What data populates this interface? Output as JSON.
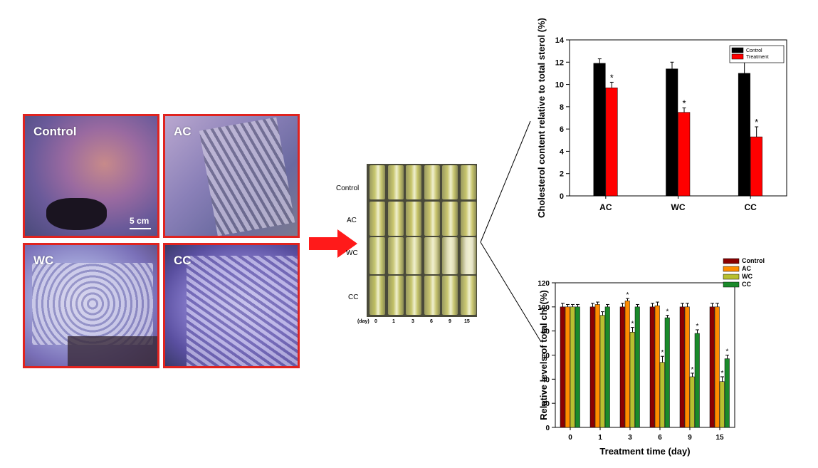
{
  "photos": [
    {
      "label": "Control",
      "scale": "5 cm"
    },
    {
      "label": "AC"
    },
    {
      "label": "WC"
    },
    {
      "label": "CC"
    }
  ],
  "tube_panel": {
    "rows": [
      "Control",
      "AC",
      "WC",
      "CC"
    ],
    "day_label": "(day)",
    "days": [
      "0",
      "1",
      "3",
      "6",
      "9",
      "15"
    ]
  },
  "colors": {
    "frame": "#e0231f",
    "arrow": "#ff1a1a",
    "control_black": "#000000",
    "treatment_red": "#ff0000",
    "chl_control": "#8b0000",
    "chl_ac": "#ff8c00",
    "chl_wc": "#b8c030",
    "chl_cc": "#1a8a2a"
  },
  "chart_data": [
    {
      "type": "bar",
      "ylabel": "Cholesterol content relative to total sterol (%)",
      "xlabel": "",
      "categories": [
        "AC",
        "WC",
        "CC"
      ],
      "ylim": [
        0,
        14
      ],
      "yticks": [
        "0",
        "2",
        "4",
        "6",
        "8",
        "10",
        "12",
        "14"
      ],
      "legend_placement": "top-right",
      "series": [
        {
          "name": "Control",
          "values": [
            11.9,
            11.4,
            11.0
          ],
          "errors": [
            0.4,
            0.6,
            1.1
          ],
          "sig": [
            "",
            "",
            ""
          ]
        },
        {
          "name": "Treatment",
          "values": [
            9.7,
            7.5,
            5.3
          ],
          "errors": [
            0.5,
            0.4,
            0.9
          ],
          "sig": [
            "*",
            "*",
            "*"
          ]
        }
      ]
    },
    {
      "type": "bar",
      "ylabel": "Relative levels of total chl (%)",
      "xlabel": "Treatment time (day)",
      "categories": [
        "0",
        "1",
        "3",
        "6",
        "9",
        "15"
      ],
      "ylim": [
        0,
        120
      ],
      "yticks": [
        "0",
        "20",
        "40",
        "60",
        "80",
        "100",
        "120"
      ],
      "legend_placement": "top-left",
      "series": [
        {
          "name": "Control",
          "values": [
            100,
            100,
            100,
            100,
            100,
            100
          ],
          "errors": [
            3,
            3,
            3,
            3,
            3,
            3
          ],
          "sig": [
            "",
            "",
            "",
            "",
            "",
            ""
          ]
        },
        {
          "name": "AC",
          "values": [
            100,
            102,
            105,
            101,
            100,
            100
          ],
          "errors": [
            2,
            2,
            2,
            3,
            3,
            3
          ],
          "sig": [
            "",
            "",
            "*",
            "",
            "",
            ""
          ]
        },
        {
          "name": "WC",
          "values": [
            100,
            93,
            79,
            54,
            42,
            38
          ],
          "errors": [
            2,
            3,
            4,
            5,
            3,
            4
          ],
          "sig": [
            "",
            "",
            "*",
            "*",
            "*",
            "*"
          ]
        },
        {
          "name": "CC",
          "values": [
            100,
            100,
            100,
            91,
            78,
            57
          ],
          "errors": [
            2,
            2,
            2,
            2,
            3,
            3
          ],
          "sig": [
            "",
            "",
            "",
            "*",
            "*",
            "*"
          ]
        }
      ]
    }
  ]
}
